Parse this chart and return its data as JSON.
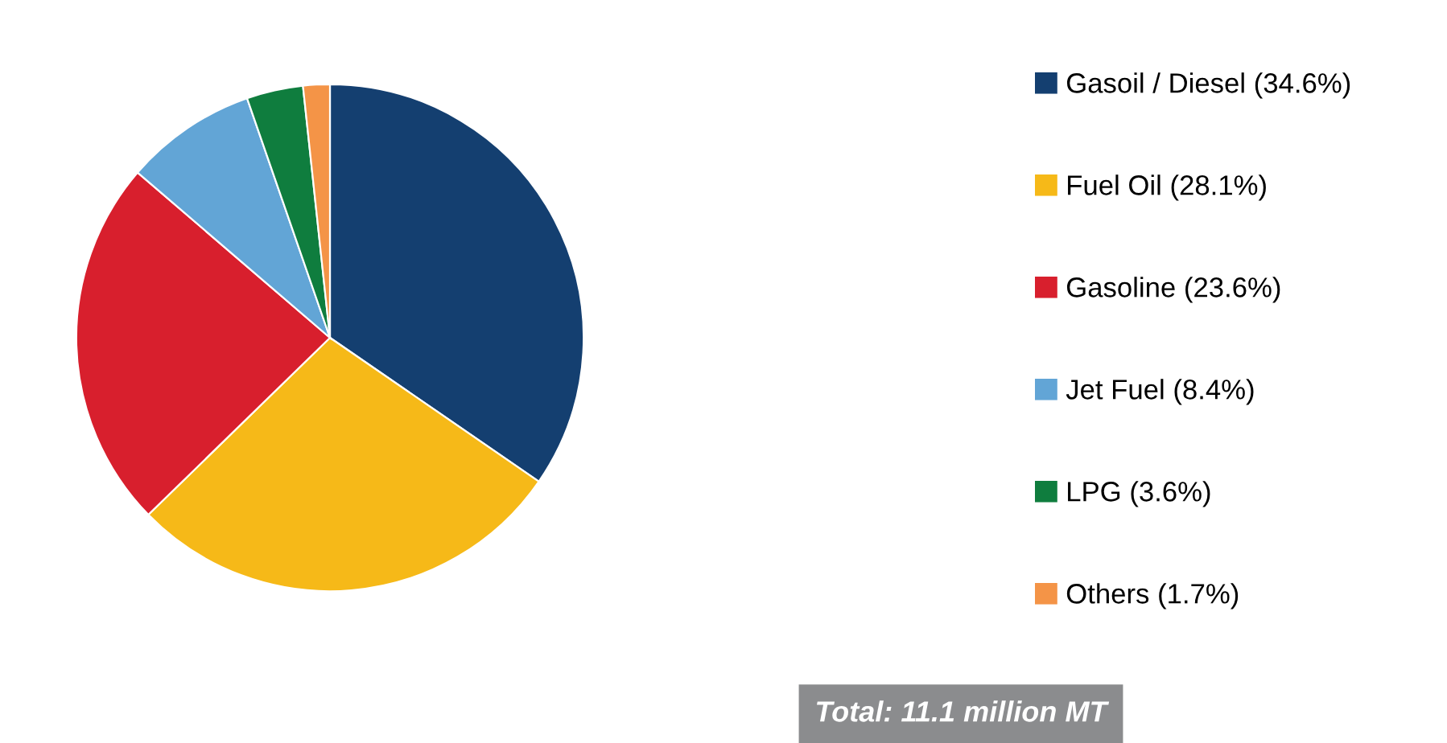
{
  "chart_data": {
    "type": "pie",
    "categories": [
      "Gasoil / Diesel (34.6%)",
      "Fuel Oil (28.1%)",
      "Gasoline (23.6%)",
      "Jet Fuel (8.4%)",
      "LPG (3.6%)",
      "Others (1.7%)"
    ],
    "values": [
      34.6,
      28.1,
      23.6,
      8.4,
      3.6,
      1.7
    ],
    "colors": [
      "#143f70",
      "#f6b918",
      "#d81f2d",
      "#62a5d6",
      "#0f7d3e",
      "#f49447"
    ],
    "legend": "right",
    "annotations": [
      "Total: 11.1 million MT"
    ]
  }
}
